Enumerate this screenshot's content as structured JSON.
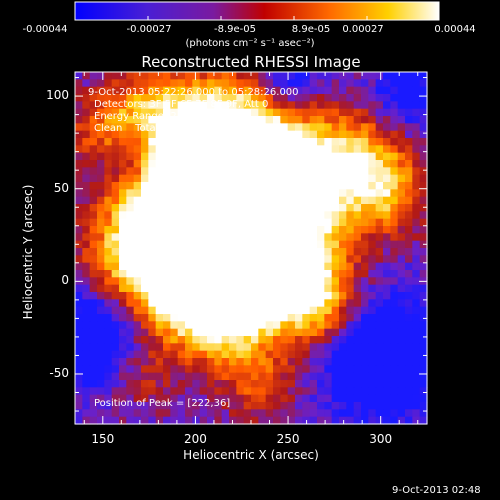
{
  "colorbar": {
    "tick_labels": [
      "-0.00044",
      "-0.00027",
      "-8.9e-05",
      "8.9e-05",
      "0.00027",
      "0.00044"
    ],
    "units": "(photons cm⁻² s⁻¹ asec⁻²)",
    "range": [
      -0.00044,
      0.00044
    ]
  },
  "title": "Reconstructed RHESSI Image",
  "annotations": {
    "time_range": "9-Oct-2013 05:22:26.000 to 05:28:26.000",
    "detectors": "Detectors: 3F 5F 6F 7F 8F 9F, Att 0",
    "energy": "Energy Range: 25.0 - 50.0 keV",
    "algorithm": "Clean    Total counts: 3.55E+04",
    "peak": "Position of Peak = [222,36]"
  },
  "footer_timestamp": "9-Oct-2013 02:48",
  "chart_data": {
    "type": "heatmap",
    "title": "Reconstructed RHESSI Image",
    "xlabel": "Heliocentric X (arcsec)",
    "ylabel": "Heliocentric Y (arcsec)",
    "xlim": [
      135,
      325
    ],
    "ylim": [
      -77,
      113
    ],
    "xticks": [
      150,
      200,
      250,
      300
    ],
    "yticks": [
      -50,
      0,
      50,
      100
    ],
    "peak": [
      222,
      36
    ],
    "colorscale": [
      "#1a1aff",
      "#6a20c8",
      "#b01818",
      "#ff5a00",
      "#ffc800",
      "#ffffff"
    ]
  }
}
